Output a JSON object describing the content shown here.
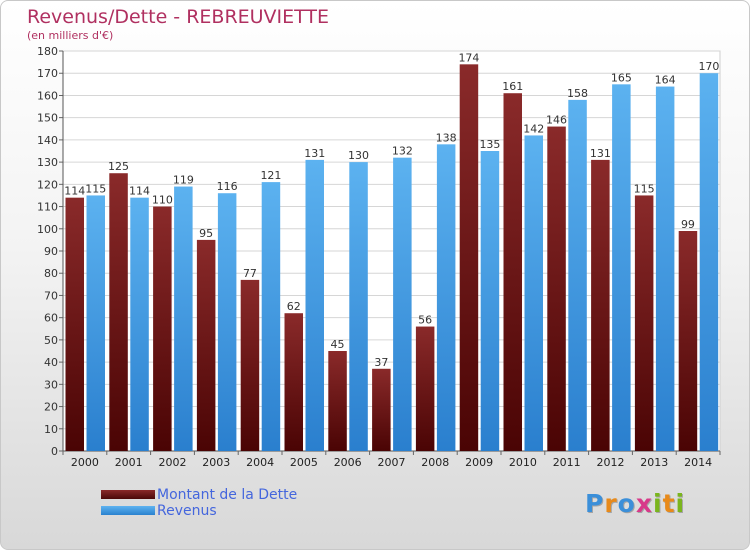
{
  "header": {
    "title": "Revenus/Dette - REBREUVIETTE",
    "subtitle": "(en milliers d'€)"
  },
  "chart_data": {
    "type": "bar",
    "categories": [
      "2000",
      "2001",
      "2002",
      "2003",
      "2004",
      "2005",
      "2006",
      "2007",
      "2008",
      "2009",
      "2010",
      "2011",
      "2012",
      "2013",
      "2014"
    ],
    "series": [
      {
        "name": "Montant de la Dette",
        "color": "#7a1c1c",
        "values": [
          114,
          125,
          110,
          95,
          77,
          62,
          45,
          37,
          56,
          174,
          161,
          146,
          131,
          115,
          99
        ]
      },
      {
        "name": "Revenus",
        "color": "#3d9ae3",
        "values": [
          115,
          114,
          119,
          116,
          121,
          131,
          130,
          132,
          138,
          135,
          142,
          158,
          165,
          164,
          170
        ]
      }
    ],
    "ylim": [
      0,
      180
    ],
    "ytick_step": 10,
    "grid": true
  },
  "legend": {
    "items": [
      {
        "label": "Montant de la Dette",
        "color": "#5a0f0f"
      },
      {
        "label": "Revenus",
        "color": "#3d9ae3"
      }
    ]
  },
  "logo": {
    "letters": [
      "P",
      "r",
      "o",
      "x",
      "i",
      "t",
      "i"
    ],
    "colors": [
      "#3b8fd9",
      "#e88a1a",
      "#3b8fd9",
      "#d83a8a",
      "#7ab51d",
      "#e88a1a",
      "#7ab51d"
    ]
  }
}
